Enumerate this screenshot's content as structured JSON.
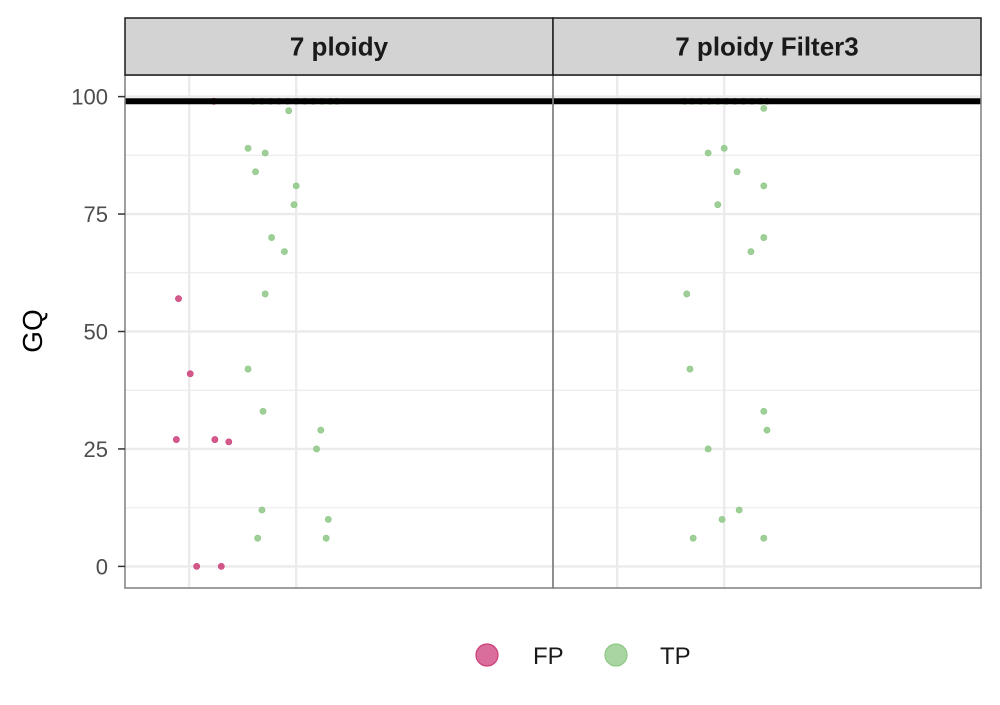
{
  "chart_data": {
    "type": "scatter",
    "ylabel": "GQ",
    "xlabel": "",
    "ylim": [
      -4.6,
      104.6
    ],
    "yticks": [
      0,
      25,
      50,
      75,
      100
    ],
    "reference_line_y": 99,
    "panels": [
      {
        "title": "7 ploidy",
        "series": [
          {
            "name": "FP",
            "points": [
              {
                "x": 0.23,
                "y": 99
              },
              {
                "x": -0.1,
                "y": 57
              },
              {
                "x": 0.01,
                "y": 41
              },
              {
                "x": -0.12,
                "y": 27
              },
              {
                "x": 0.24,
                "y": 27
              },
              {
                "x": 0.37,
                "y": 26.5
              },
              {
                "x": 0.07,
                "y": 0
              },
              {
                "x": 0.3,
                "y": 0
              }
            ]
          },
          {
            "name": "TP",
            "points": [
              {
                "x": 0.6,
                "y": 99
              },
              {
                "x": 0.68,
                "y": 99
              },
              {
                "x": 0.76,
                "y": 99
              },
              {
                "x": 0.84,
                "y": 99
              },
              {
                "x": 0.92,
                "y": 99
              },
              {
                "x": 1.0,
                "y": 99
              },
              {
                "x": 1.08,
                "y": 99
              },
              {
                "x": 1.16,
                "y": 99
              },
              {
                "x": 1.24,
                "y": 99
              },
              {
                "x": 1.32,
                "y": 99
              },
              {
                "x": 1.38,
                "y": 99
              },
              {
                "x": 0.93,
                "y": 97
              },
              {
                "x": 0.55,
                "y": 89
              },
              {
                "x": 0.71,
                "y": 88
              },
              {
                "x": 0.62,
                "y": 84
              },
              {
                "x": 1.0,
                "y": 81
              },
              {
                "x": 0.98,
                "y": 77
              },
              {
                "x": 0.77,
                "y": 70
              },
              {
                "x": 0.89,
                "y": 67
              },
              {
                "x": 0.71,
                "y": 58
              },
              {
                "x": 0.55,
                "y": 42
              },
              {
                "x": 0.69,
                "y": 33
              },
              {
                "x": 1.23,
                "y": 29
              },
              {
                "x": 1.19,
                "y": 25
              },
              {
                "x": 0.68,
                "y": 12
              },
              {
                "x": 1.3,
                "y": 10
              },
              {
                "x": 0.64,
                "y": 6
              },
              {
                "x": 1.28,
                "y": 6
              }
            ]
          }
        ]
      },
      {
        "title": "7 ploidy Filter3",
        "series": [
          {
            "name": "TP",
            "points": [
              {
                "x": 0.63,
                "y": 99
              },
              {
                "x": 0.7,
                "y": 99
              },
              {
                "x": 0.78,
                "y": 99
              },
              {
                "x": 0.86,
                "y": 99
              },
              {
                "x": 0.94,
                "y": 99
              },
              {
                "x": 1.02,
                "y": 99
              },
              {
                "x": 1.1,
                "y": 99
              },
              {
                "x": 1.18,
                "y": 99
              },
              {
                "x": 1.26,
                "y": 99
              },
              {
                "x": 1.34,
                "y": 99
              },
              {
                "x": 1.4,
                "y": 99
              },
              {
                "x": 1.37,
                "y": 97.5
              },
              {
                "x": 1.0,
                "y": 89
              },
              {
                "x": 0.85,
                "y": 88
              },
              {
                "x": 1.12,
                "y": 84
              },
              {
                "x": 1.37,
                "y": 81
              },
              {
                "x": 0.94,
                "y": 77
              },
              {
                "x": 1.37,
                "y": 70
              },
              {
                "x": 1.25,
                "y": 67
              },
              {
                "x": 0.65,
                "y": 58
              },
              {
                "x": 0.68,
                "y": 42
              },
              {
                "x": 1.37,
                "y": 33
              },
              {
                "x": 1.4,
                "y": 29
              },
              {
                "x": 0.85,
                "y": 25
              },
              {
                "x": 1.14,
                "y": 12
              },
              {
                "x": 0.98,
                "y": 10
              },
              {
                "x": 0.71,
                "y": 6
              },
              {
                "x": 1.37,
                "y": 6
              }
            ]
          }
        ]
      }
    ],
    "legend": {
      "placement": "bottom",
      "entries": [
        {
          "label": "FP",
          "color": "#cc3d78"
        },
        {
          "label": "TP",
          "color": "#8cc784"
        }
      ]
    },
    "colors": {
      "FP": "#cc3d78",
      "TP": "#8cc784",
      "strip": "#d3d3d3",
      "grid": "#ebebeb",
      "reference_line": "#000000"
    }
  }
}
